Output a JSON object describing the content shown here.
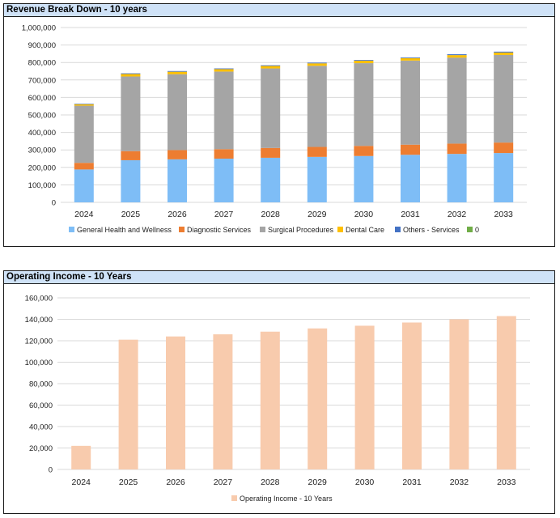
{
  "chart_data": [
    {
      "type": "bar",
      "stacked": true,
      "title": "Revenue Break Down - 10 years",
      "categories": [
        "2024",
        "2025",
        "2026",
        "2027",
        "2028",
        "2029",
        "2030",
        "2031",
        "2032",
        "2033"
      ],
      "ylim": [
        0,
        1000000
      ],
      "yticks": [
        "0",
        "100,000",
        "200,000",
        "300,000",
        "400,000",
        "500,000",
        "600,000",
        "700,000",
        "800,000",
        "900,000",
        "1,000,000"
      ],
      "grid": true,
      "legend": "bottom",
      "series": [
        {
          "name": "General Health and Wellness",
          "color": "#7ebdf6",
          "values": [
            188000,
            241000,
            246000,
            250000,
            255000,
            260000,
            265000,
            272000,
            277000,
            282000
          ]
        },
        {
          "name": "Diagnostic Services",
          "color": "#ed7d31",
          "values": [
            38000,
            52000,
            53000,
            54000,
            56000,
            57000,
            58000,
            58000,
            59000,
            60000
          ]
        },
        {
          "name": "Surgical Procedures",
          "color": "#a5a5a5",
          "values": [
            327000,
            427000,
            434000,
            444000,
            455000,
            464000,
            473000,
            481000,
            492000,
            501000
          ]
        },
        {
          "name": "Dental Care",
          "color": "#ffc000",
          "values": [
            8000,
            14000,
            14000,
            14000,
            14000,
            14000,
            14000,
            14000,
            14000,
            14000
          ]
        },
        {
          "name": "Others - Services",
          "color": "#4472c4",
          "values": [
            3000,
            4000,
            4000,
            4000,
            4000,
            4000,
            4000,
            4000,
            5000,
            5000
          ]
        },
        {
          "name": "0",
          "color": "#70ad47",
          "values": [
            0,
            0,
            0,
            0,
            0,
            0,
            0,
            0,
            0,
            0
          ]
        }
      ]
    },
    {
      "type": "bar",
      "title": "Operating Income - 10 Years",
      "categories": [
        "2024",
        "2025",
        "2026",
        "2027",
        "2028",
        "2029",
        "2030",
        "2031",
        "2032",
        "2033"
      ],
      "ylim": [
        0,
        160000
      ],
      "yticks": [
        "0",
        "20,000",
        "40,000",
        "60,000",
        "80,000",
        "100,000",
        "120,000",
        "140,000",
        "160,000"
      ],
      "grid": true,
      "legend": "bottom",
      "series": [
        {
          "name": "Operating Income - 10 Years",
          "color": "#f8cbad",
          "values": [
            22000,
            121000,
            124000,
            126000,
            128500,
            131500,
            134000,
            137000,
            140000,
            143000
          ]
        }
      ]
    }
  ]
}
